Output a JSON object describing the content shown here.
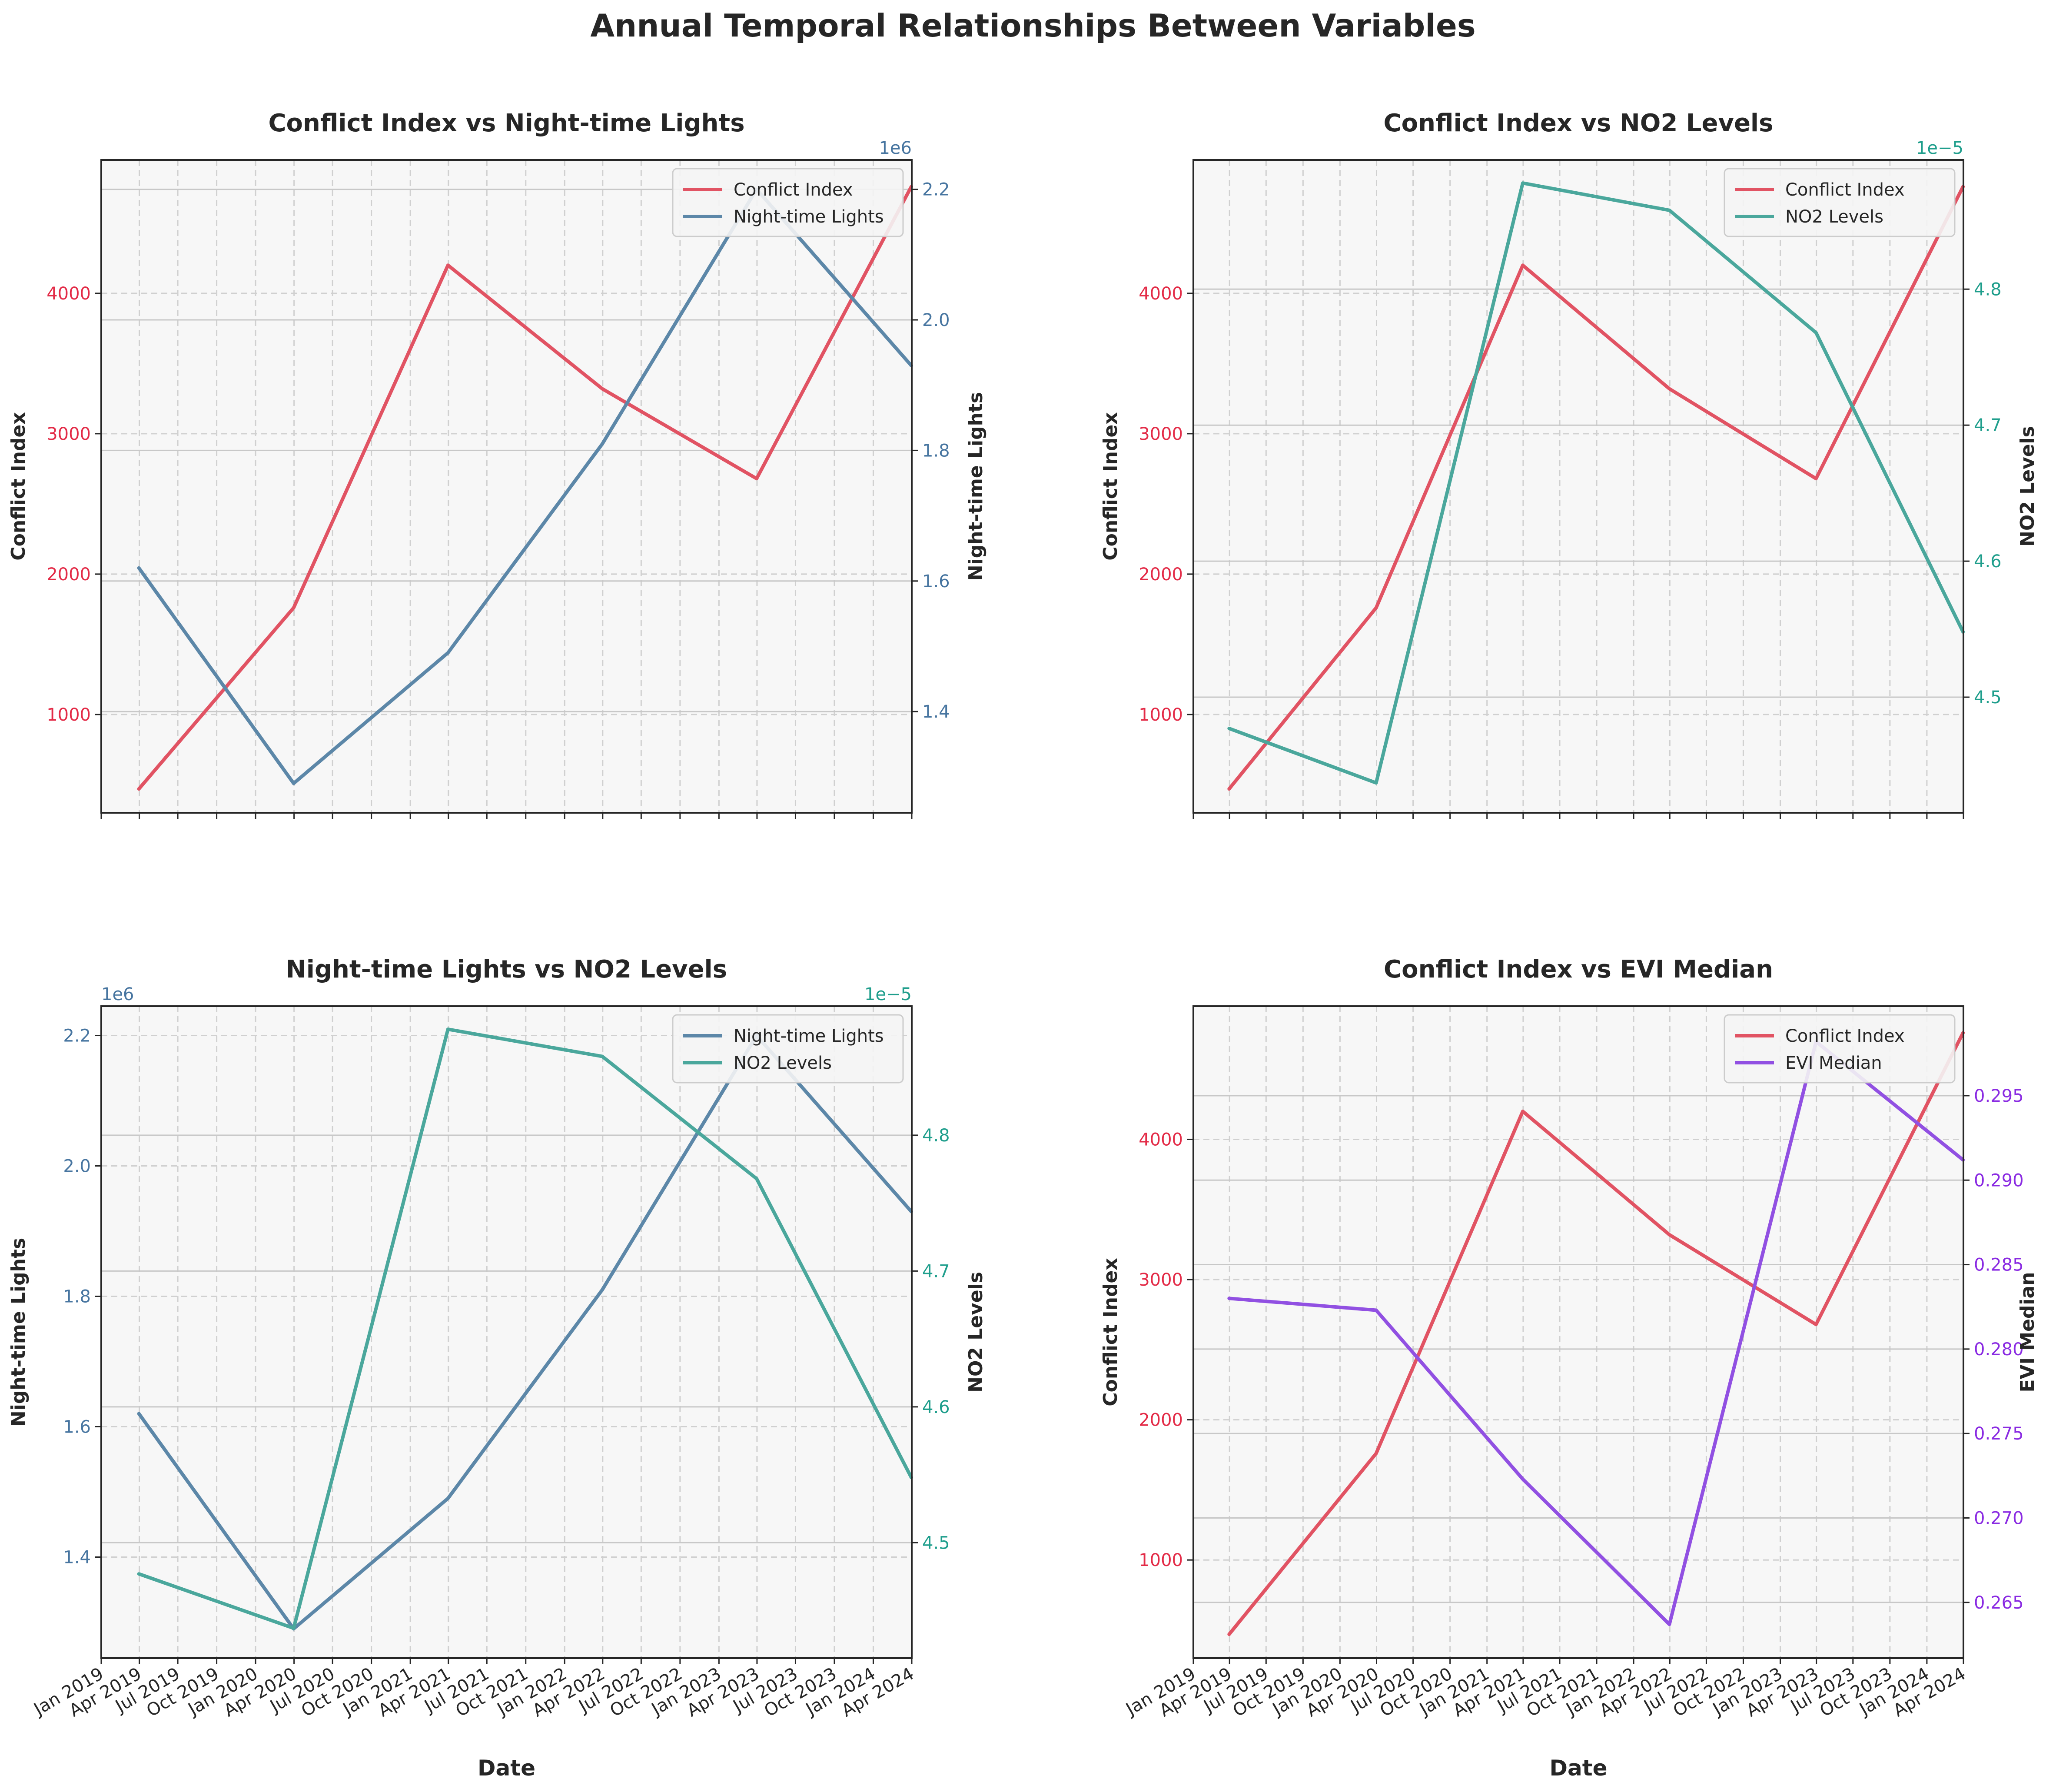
{
  "figure": {
    "title": "Annual Temporal Relationships Between Variables"
  },
  "colors": {
    "conflict": "#e15363",
    "lights": "#5c87a8",
    "no2": "#4aa79c",
    "evi": "#9150e2",
    "conflict_label": "#e32b47",
    "lights_label": "#4775a0",
    "no2_label": "#1f9e8c",
    "evi_label": "#8a2be2",
    "axes_bg": "#f7f7f7"
  },
  "chart_data": [
    {
      "type": "line",
      "title": "Conflict Index vs Night-time Lights",
      "xlabel": "",
      "x": [
        "2019-03-31",
        "2020-03-31",
        "2021-03-31",
        "2022-03-31",
        "2023-03-31",
        "2024-03-31"
      ],
      "left": {
        "name": "Conflict Index",
        "key": "conflict",
        "ylim": [
          300,
          4950
        ],
        "ticks": [
          "1000",
          "2000",
          "3000",
          "4000"
        ],
        "tick_values": [
          1000,
          2000,
          3000,
          4000
        ],
        "values": [
          470,
          1760,
          4200,
          3320,
          2680,
          4760
        ],
        "offset": ""
      },
      "right": {
        "name": "Night-time Lights",
        "key": "lights",
        "ylim": [
          1.245,
          2.245
        ],
        "ticks": [
          "1.4",
          "1.6",
          "1.8",
          "2.0",
          "2.2"
        ],
        "tick_values": [
          1.4,
          1.6,
          1.8,
          2.0,
          2.2
        ],
        "values": [
          1.62,
          1.29,
          1.49,
          1.81,
          2.2,
          1.93
        ],
        "offset": "1e6"
      },
      "legend": "upper right",
      "grid": true,
      "show_xticks": false
    },
    {
      "type": "line",
      "title": "Conflict Index vs NO2 Levels",
      "xlabel": "",
      "x": [
        "2019-03-31",
        "2020-03-31",
        "2021-03-31",
        "2022-03-31",
        "2023-03-31",
        "2024-03-31"
      ],
      "left": {
        "name": "Conflict Index",
        "key": "conflict",
        "ylim": [
          300,
          4950
        ],
        "ticks": [
          "1000",
          "2000",
          "3000",
          "4000"
        ],
        "tick_values": [
          1000,
          2000,
          3000,
          4000
        ],
        "values": [
          470,
          1760,
          4200,
          3320,
          2680,
          4760
        ],
        "offset": ""
      },
      "right": {
        "name": "NO2 Levels",
        "key": "no2",
        "ylim": [
          4.415,
          4.895
        ],
        "ticks": [
          "4.5",
          "4.6",
          "4.7",
          "4.8"
        ],
        "tick_values": [
          4.5,
          4.6,
          4.7,
          4.8
        ],
        "values": [
          4.477,
          4.437,
          4.878,
          4.858,
          4.768,
          4.548
        ],
        "offset": "1e−5"
      },
      "legend": "upper right",
      "grid": true,
      "show_xticks": false
    },
    {
      "type": "line",
      "title": "Night-time Lights vs NO2 Levels",
      "xlabel": "Date",
      "x": [
        "2019-03-31",
        "2020-03-31",
        "2021-03-31",
        "2022-03-31",
        "2023-03-31",
        "2024-03-31"
      ],
      "left": {
        "name": "Night-time Lights",
        "key": "lights",
        "ylim": [
          1.245,
          2.245
        ],
        "ticks": [
          "1.4",
          "1.6",
          "1.8",
          "2.0",
          "2.2"
        ],
        "tick_values": [
          1.4,
          1.6,
          1.8,
          2.0,
          2.2
        ],
        "values": [
          1.62,
          1.29,
          1.49,
          1.81,
          2.2,
          1.93
        ],
        "offset": "1e6"
      },
      "right": {
        "name": "NO2 Levels",
        "key": "no2",
        "ylim": [
          4.415,
          4.895
        ],
        "ticks": [
          "4.5",
          "4.6",
          "4.7",
          "4.8"
        ],
        "tick_values": [
          4.5,
          4.6,
          4.7,
          4.8
        ],
        "values": [
          4.477,
          4.437,
          4.878,
          4.858,
          4.768,
          4.548
        ],
        "offset": "1e−5"
      },
      "legend": "upper right",
      "grid": true,
      "show_xticks": true
    },
    {
      "type": "line",
      "title": "Conflict Index vs EVI Median",
      "xlabel": "Date",
      "x": [
        "2019-03-31",
        "2020-03-31",
        "2021-03-31",
        "2022-03-31",
        "2023-03-31",
        "2024-03-31"
      ],
      "left": {
        "name": "Conflict Index",
        "key": "conflict",
        "ylim": [
          300,
          4950
        ],
        "ticks": [
          "1000",
          "2000",
          "3000",
          "4000"
        ],
        "tick_values": [
          1000,
          2000,
          3000,
          4000
        ],
        "values": [
          470,
          1760,
          4200,
          3320,
          2680,
          4760
        ],
        "offset": ""
      },
      "right": {
        "name": "EVI Median",
        "key": "evi",
        "ylim": [
          0.2617,
          0.3003
        ],
        "ticks": [
          "0.265",
          "0.270",
          "0.275",
          "0.280",
          "0.285",
          "0.290",
          "0.295"
        ],
        "tick_values": [
          0.265,
          0.27,
          0.275,
          0.28,
          0.285,
          0.29,
          0.295
        ],
        "values": [
          0.283,
          0.2823,
          0.2723,
          0.2637,
          0.2982,
          0.2912
        ],
        "offset": ""
      },
      "legend": "upper right",
      "grid": true,
      "show_xticks": true
    }
  ],
  "x_axis": {
    "range": [
      "2019-01-01",
      "2024-04-01"
    ],
    "tick_labels": [
      "Jan 2019",
      "Apr 2019",
      "Jul 2019",
      "Oct 2019",
      "Jan 2020",
      "Apr 2020",
      "Jul 2020",
      "Oct 2020",
      "Jan 2021",
      "Apr 2021",
      "Jul 2021",
      "Oct 2021",
      "Jan 2022",
      "Apr 2022",
      "Jul 2022",
      "Oct 2022",
      "Jan 2023",
      "Apr 2023",
      "Jul 2023",
      "Oct 2023",
      "Jan 2024",
      "Apr 2024"
    ],
    "tick_dates": [
      "2019-01-01",
      "2019-04-01",
      "2019-07-01",
      "2019-10-01",
      "2020-01-01",
      "2020-04-01",
      "2020-07-01",
      "2020-10-01",
      "2021-01-01",
      "2021-04-01",
      "2021-07-01",
      "2021-10-01",
      "2022-01-01",
      "2022-04-01",
      "2022-07-01",
      "2022-10-01",
      "2023-01-01",
      "2023-04-01",
      "2023-07-01",
      "2023-10-01",
      "2024-01-01",
      "2024-04-01"
    ]
  }
}
